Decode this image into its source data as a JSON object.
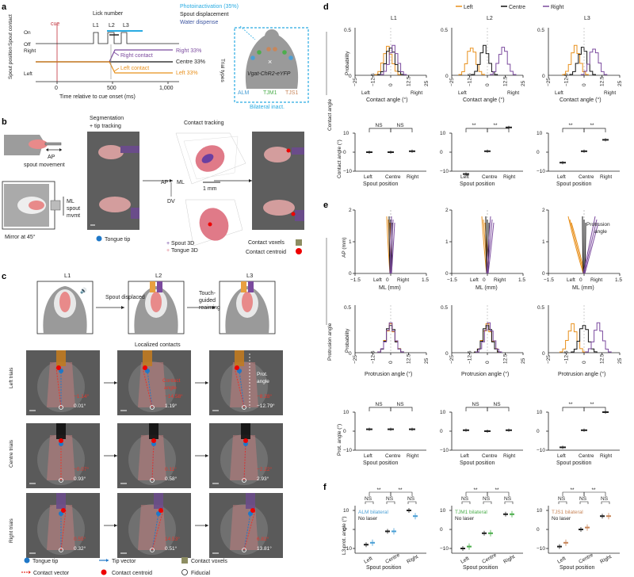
{
  "panels": {
    "a": "a",
    "b": "b",
    "c": "c",
    "d": "d",
    "e": "e",
    "f": "f"
  },
  "colors": {
    "left": "#e8901c",
    "centre": "#111111",
    "right": "#7b4a9e",
    "cyan": "#29abe2",
    "red": "#e8342a",
    "blue": "#1f78c8",
    "olive": "#8d8d62",
    "lightblue": "#5ba0d8",
    "alm": "#4a9fd5",
    "tjm1": "#4cae4c",
    "tjs1": "#c8865a"
  },
  "a": {
    "lick_number": "Lick number",
    "l1": "L1",
    "l2": "L2",
    "l3": "L3",
    "photoinactivation": "Photoinactivation (35%)",
    "spout_displacement": "Spout displacement",
    "water_dispense": "Water dispense",
    "cue": "cue",
    "on": "On",
    "off": "Off",
    "right": "Right",
    "left": "Left",
    "spout_contact": "Spout contact",
    "spout_position": "Spout position",
    "right_contact": "Right contact",
    "left_contact": "Left contact",
    "right_pct": "Right 33%",
    "centre_pct": "Centre 33%",
    "left_pct": "Left 33%",
    "trial_types": "Trial types",
    "ticks": [
      "0",
      "500",
      "1,000"
    ],
    "xlabel": "Time relative to cue onset (ms)",
    "mouse_label": "Vgat-ChR2-eYFP",
    "alm": "ALM",
    "tjm1": "TJM1",
    "tjs1": "TJS1",
    "bilateral": "Bilateral inact."
  },
  "b": {
    "ap": "AP",
    "spout_movement": "spout movement",
    "ml": "ML",
    "spout": "spout",
    "mvmt": "mvmt",
    "mirror": "Mirror at 45°",
    "seg": "Segmentation",
    "tip_tracking": "+ tip tracking",
    "contact_tracking": "Contact tracking",
    "dv": "DV",
    "scale": "1 mm",
    "tongue_tip": "Tongue tip",
    "spout3d": "Spout 3D",
    "tongue3d": "Tongue 3D",
    "contact_voxels": "Contact voxels",
    "contact_centroid": "Contact centroid"
  },
  "c": {
    "spout_displaced": "Spout displaced",
    "touch": "Touch-",
    "guided": "guided",
    "reaiming": "reaiming",
    "localized": "Localized contacts",
    "contact": "Contact",
    "angle": "angle",
    "prot": "Prot.",
    "prot_angle": "angle",
    "left_trials": "Left trials",
    "centre_trials": "Centre trials",
    "right_trials": "Right trials",
    "left_vals": [
      [
        "−1.14°",
        "0.01°"
      ],
      [
        "−14.58°",
        "1.19°"
      ],
      [
        "−8.28°",
        "−12.79°"
      ]
    ],
    "centre_vals": [
      [
        "−0.07°",
        "0.93°"
      ],
      [
        "0.11°",
        "0.58°"
      ],
      [
        "−2.22°",
        "2.93°"
      ]
    ],
    "right_vals": [
      [
        "0.55°",
        "0.32°"
      ],
      [
        "14.53°",
        "0.51°"
      ],
      [
        "6.82°",
        "13.81°"
      ]
    ],
    "legend": [
      "Tongue tip",
      "Tip vector",
      "Contact voxels",
      "Contact vector",
      "Contact centroid",
      "Fiducial"
    ]
  },
  "d": {
    "legend": [
      "Left",
      "Centre",
      "Right"
    ],
    "cols": [
      "L1",
      "L2",
      "L3"
    ],
    "side": "Contact angle",
    "prob": "Probability",
    "y_ticks": [
      "0",
      "0.5"
    ],
    "x_ticks": [
      "−25",
      "−12.5",
      "0",
      "12.5",
      "25"
    ],
    "arrow_left": "Left",
    "arrow_right": "Right",
    "xlabel": "Contact angle (°)",
    "ylabel": "Contact angle (°)",
    "y2_ticks": [
      "10",
      "0",
      "−10"
    ],
    "x2": [
      "Left",
      "Centre",
      "Right"
    ],
    "x2label": "Spout position",
    "sig": [
      [
        "NS",
        "NS"
      ],
      [
        "**",
        "**"
      ],
      [
        "**",
        "**"
      ]
    ],
    "means": [
      [
        0,
        0,
        0.5
      ],
      [
        -11.5,
        0.5,
        13
      ],
      [
        -5.5,
        0.5,
        6.5
      ]
    ]
  },
  "e": {
    "side": "Protrusion angle",
    "ap": "AP (mm)",
    "y_ticks": [
      "2",
      "1",
      "0"
    ],
    "x_ticks": [
      "−1.5",
      "0",
      "1.5"
    ],
    "left": "Left",
    "right": "Right",
    "xlabel": "ML (mm)",
    "prot": "Protrusion",
    "angle": "angle",
    "prob": "Probability",
    "p_ticks": [
      "0",
      "0.5"
    ],
    "h_ticks": [
      "−25",
      "−12.5",
      "0",
      "12.5",
      "25"
    ],
    "hlabel": "Protrusion angle (°)",
    "ylabel": "Prot. angle (°)",
    "y2_ticks": [
      "10",
      "0",
      "−10"
    ],
    "x2": [
      "Left",
      "Centre",
      "Right"
    ],
    "x2label": "Spout position",
    "sig": [
      [
        "NS",
        "NS"
      ],
      [
        "NS",
        "NS"
      ],
      [
        "**",
        "**"
      ]
    ],
    "means": [
      [
        1,
        1,
        1
      ],
      [
        0.5,
        0,
        0.5
      ],
      [
        -8.5,
        0.5,
        10
      ]
    ]
  },
  "f": {
    "ylabel": "L3 prot. angle (°)",
    "y_ticks": [
      "10",
      "0",
      "−10"
    ],
    "x2": [
      "Left",
      "Centre",
      "Right"
    ],
    "x2label": "Spout position",
    "right": "Right",
    "left": "Left",
    "ns": "NS",
    "star": "**",
    "no_laser": "No laser",
    "groups": [
      "ALM bilateral",
      "TJM1 bilateral",
      "TJS1 bilateral"
    ],
    "means": [
      [
        [
          -8,
          -1,
          10
        ],
        [
          -7,
          -1,
          7
        ]
      ],
      [
        [
          -10,
          -2,
          8
        ],
        [
          -9,
          -2,
          8
        ]
      ],
      [
        [
          -9,
          0,
          7
        ],
        [
          -7,
          1,
          7
        ]
      ]
    ]
  }
}
